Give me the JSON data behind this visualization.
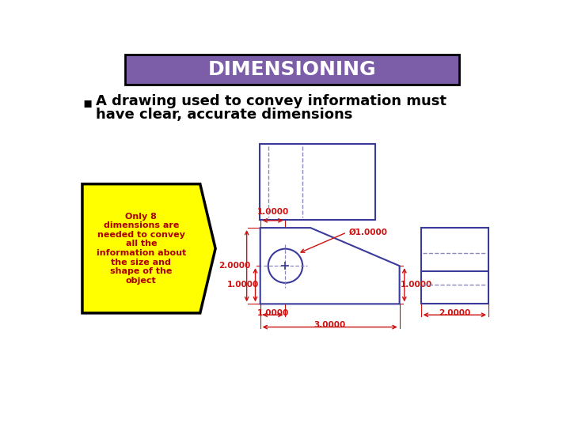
{
  "title": "DIMENSIONING",
  "title_bg": "#7B5EA7",
  "title_color": "#FFFFFF",
  "bullet_text_line1": "A drawing used to convey information must",
  "bullet_text_line2": "have clear, accurate dimensions",
  "callout_text": "Only 8\ndimensions are\nneeded to convey\nall the\ninformation about\nthe size and\nshape of the\nobject",
  "callout_bg": "#FFFF00",
  "callout_border": "#000000",
  "blue_color": "#3A3A9A",
  "blue_dash": "#8888BB",
  "red_color": "#CC1111",
  "bg_color": "#FFFFFF"
}
